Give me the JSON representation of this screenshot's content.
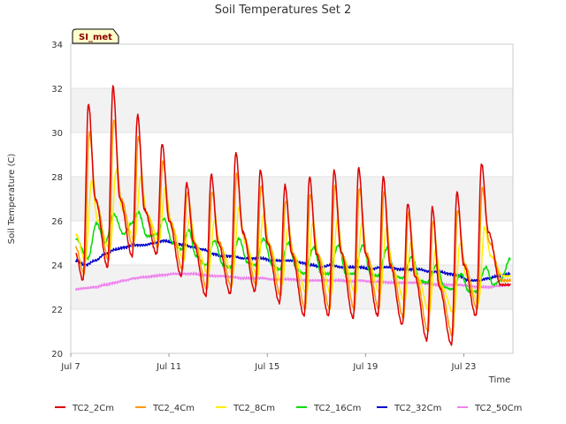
{
  "chart_data": {
    "type": "line",
    "title": "Soil Temperatures Set 2",
    "xlabel": "Time",
    "ylabel": "Soil Temperature (C)",
    "badge": "SI_met",
    "ylim": [
      20,
      34
    ],
    "y_ticks": [
      20,
      22,
      24,
      26,
      28,
      30,
      32,
      34
    ],
    "x_range_days": [
      7,
      25
    ],
    "x_ticks": [
      {
        "day": 7,
        "label": "Jul 7"
      },
      {
        "day": 11,
        "label": "Jul 11"
      },
      {
        "day": 15,
        "label": "Jul 15"
      },
      {
        "day": 19,
        "label": "Jul 19"
      },
      {
        "day": 23,
        "label": "Jul 23"
      }
    ],
    "grid": "horizontal bands",
    "legend_position": "bottom",
    "x_unit": "day of July",
    "series": [
      {
        "name": "TC2_2Cm",
        "color": "#dd0000",
        "x": [
          7.2,
          7.5,
          7.72,
          8.0,
          8.5,
          8.72,
          9.0,
          9.5,
          9.72,
          10.0,
          10.5,
          10.72,
          11.0,
          11.5,
          11.72,
          12.0,
          12.5,
          12.72,
          13.0,
          13.5,
          13.72,
          14.0,
          14.5,
          14.72,
          15.0,
          15.5,
          15.72,
          16.0,
          16.5,
          16.72,
          17.0,
          17.5,
          17.72,
          18.0,
          18.5,
          18.72,
          19.0,
          19.5,
          19.72,
          20.0,
          20.5,
          20.72,
          21.0,
          21.5,
          21.72,
          22.0,
          22.5,
          22.72,
          23.0,
          23.5,
          23.72,
          24.0,
          24.5,
          24.72,
          24.9
        ],
        "y": [
          24.5,
          23.3,
          31.3,
          27.0,
          23.9,
          32.1,
          27.0,
          24.4,
          30.8,
          26.5,
          24.5,
          29.5,
          26.0,
          23.5,
          27.7,
          25.0,
          22.6,
          28.1,
          25.0,
          22.7,
          29.1,
          25.5,
          22.8,
          28.3,
          25.0,
          22.3,
          27.6,
          24.5,
          21.7,
          28.0,
          24.5,
          21.7,
          28.3,
          24.6,
          21.6,
          28.4,
          24.5,
          21.7,
          28.0,
          24.0,
          21.3,
          26.8,
          23.5,
          20.6,
          26.6,
          23.0,
          20.4,
          27.3,
          24.0,
          21.7,
          28.6,
          25.5,
          23.1,
          23.1,
          23.1
        ]
      },
      {
        "name": "TC2_4Cm",
        "color": "#ff9900",
        "x": [
          7.2,
          7.55,
          7.75,
          8.05,
          8.55,
          8.75,
          9.05,
          9.55,
          9.75,
          10.05,
          10.55,
          10.75,
          11.05,
          11.55,
          11.75,
          12.05,
          12.55,
          12.75,
          13.05,
          13.55,
          13.75,
          14.05,
          14.55,
          14.75,
          15.05,
          15.55,
          15.75,
          16.05,
          16.55,
          16.75,
          17.05,
          17.55,
          17.75,
          18.05,
          18.55,
          18.75,
          19.05,
          19.55,
          19.75,
          20.05,
          20.55,
          20.75,
          21.05,
          21.55,
          21.75,
          22.05,
          22.55,
          22.75,
          23.05,
          23.55,
          23.75,
          24.05,
          24.55,
          24.75,
          24.9
        ],
        "y": [
          24.8,
          23.6,
          30.0,
          26.8,
          24.2,
          30.6,
          27.0,
          24.8,
          29.8,
          26.4,
          24.8,
          28.7,
          26.0,
          23.8,
          27.3,
          25.0,
          22.9,
          27.3,
          25.0,
          23.0,
          28.1,
          25.3,
          23.1,
          27.6,
          25.0,
          22.6,
          26.9,
          24.5,
          22.0,
          27.2,
          24.5,
          22.0,
          27.6,
          24.5,
          22.0,
          27.5,
          24.5,
          22.0,
          27.3,
          24.0,
          21.6,
          26.4,
          23.5,
          21.0,
          26.0,
          23.0,
          20.8,
          26.5,
          24.0,
          22.0,
          27.5,
          25.0,
          23.3,
          23.3,
          23.3
        ]
      },
      {
        "name": "TC2_8Cm",
        "color": "#ffee00",
        "x": [
          7.2,
          7.6,
          7.85,
          8.1,
          8.6,
          8.85,
          9.1,
          9.6,
          9.85,
          10.1,
          10.6,
          10.85,
          11.1,
          11.6,
          11.85,
          12.1,
          12.6,
          12.85,
          13.1,
          13.6,
          13.85,
          14.1,
          14.6,
          14.85,
          15.1,
          15.6,
          15.85,
          16.1,
          16.6,
          16.85,
          17.1,
          17.6,
          17.85,
          18.1,
          18.6,
          18.85,
          19.1,
          19.6,
          19.85,
          20.1,
          20.6,
          20.85,
          21.1,
          21.6,
          21.85,
          22.1,
          22.6,
          22.85,
          23.1,
          23.6,
          23.85,
          24.1,
          24.6,
          24.85,
          24.9
        ],
        "y": [
          25.4,
          24.2,
          27.8,
          26.0,
          24.7,
          28.3,
          26.5,
          25.1,
          28.0,
          26.3,
          25.1,
          27.5,
          25.8,
          24.2,
          26.2,
          24.9,
          23.6,
          26.0,
          24.8,
          23.6,
          26.6,
          25.0,
          23.5,
          26.3,
          24.8,
          23.1,
          25.7,
          24.4,
          22.7,
          25.9,
          24.4,
          22.7,
          26.0,
          24.3,
          22.7,
          25.9,
          24.2,
          22.7,
          25.7,
          23.8,
          22.4,
          25.0,
          23.5,
          21.9,
          24.7,
          23.0,
          21.8,
          25.0,
          23.5,
          22.3,
          25.7,
          24.4,
          23.5,
          23.5,
          23.5
        ]
      },
      {
        "name": "TC2_16Cm",
        "color": "#00dd00",
        "x": [
          7.2,
          7.7,
          8.05,
          8.4,
          8.75,
          9.15,
          9.5,
          9.75,
          10.1,
          10.5,
          10.8,
          11.15,
          11.5,
          11.8,
          12.1,
          12.5,
          12.85,
          13.2,
          13.5,
          13.85,
          14.2,
          14.5,
          14.85,
          15.2,
          15.5,
          15.85,
          16.2,
          16.5,
          16.9,
          17.2,
          17.5,
          17.9,
          18.2,
          18.5,
          18.9,
          19.2,
          19.5,
          19.9,
          20.2,
          20.5,
          20.9,
          21.2,
          21.5,
          21.9,
          22.2,
          22.5,
          22.9,
          23.2,
          23.5,
          23.9,
          24.2,
          24.5,
          24.9
        ],
        "y": [
          25.2,
          24.3,
          25.9,
          25.0,
          26.3,
          25.4,
          25.9,
          26.4,
          25.3,
          25.4,
          26.1,
          25.0,
          24.7,
          25.6,
          24.4,
          24.0,
          25.1,
          24.0,
          23.9,
          25.2,
          24.1,
          24.0,
          25.2,
          24.0,
          23.8,
          25.0,
          23.8,
          23.6,
          24.8,
          23.6,
          23.6,
          24.9,
          23.6,
          23.6,
          24.9,
          23.6,
          23.5,
          24.8,
          23.5,
          23.4,
          24.4,
          23.3,
          23.2,
          24.0,
          23.0,
          22.9,
          23.6,
          22.8,
          22.8,
          23.9,
          23.1,
          23.3,
          24.3
        ]
      },
      {
        "name": "TC2_32Cm",
        "color": "#0000cc",
        "x": [
          7.2,
          7.6,
          8.0,
          8.4,
          8.8,
          9.2,
          9.6,
          10.0,
          10.4,
          10.8,
          11.2,
          11.6,
          12.0,
          12.4,
          12.8,
          13.2,
          13.6,
          14.0,
          14.4,
          14.8,
          15.2,
          15.6,
          16.0,
          16.4,
          16.8,
          17.2,
          17.6,
          18.0,
          18.4,
          18.8,
          19.2,
          19.6,
          20.0,
          20.4,
          20.8,
          21.2,
          21.6,
          22.0,
          22.4,
          22.8,
          23.2,
          23.6,
          24.0,
          24.4,
          24.9
        ],
        "y": [
          24.2,
          24.0,
          24.2,
          24.5,
          24.7,
          24.8,
          24.9,
          24.9,
          25.0,
          25.1,
          25.0,
          24.9,
          24.8,
          24.7,
          24.5,
          24.4,
          24.4,
          24.3,
          24.3,
          24.3,
          24.2,
          24.2,
          24.2,
          24.1,
          24.0,
          23.9,
          24.0,
          23.9,
          23.9,
          23.9,
          23.8,
          23.9,
          23.9,
          23.8,
          23.8,
          23.8,
          23.7,
          23.7,
          23.6,
          23.5,
          23.3,
          23.3,
          23.4,
          23.5,
          23.6
        ]
      },
      {
        "name": "TC2_50Cm",
        "color": "#ee82ee",
        "x": [
          7.2,
          7.6,
          8.0,
          8.4,
          8.8,
          9.2,
          9.6,
          10.0,
          10.4,
          10.8,
          11.2,
          11.6,
          12.0,
          12.4,
          12.8,
          13.2,
          13.6,
          14.0,
          14.4,
          14.8,
          15.2,
          15.6,
          16.0,
          16.4,
          16.8,
          17.2,
          17.6,
          18.0,
          18.4,
          18.8,
          19.2,
          19.6,
          20.0,
          20.4,
          20.8,
          21.2,
          21.6,
          22.0,
          22.4,
          22.8,
          23.2,
          23.6,
          24.0,
          24.4,
          24.9
        ],
        "y": [
          22.9,
          22.95,
          23.0,
          23.1,
          23.2,
          23.3,
          23.4,
          23.45,
          23.5,
          23.55,
          23.6,
          23.6,
          23.6,
          23.55,
          23.5,
          23.5,
          23.45,
          23.4,
          23.4,
          23.4,
          23.35,
          23.35,
          23.35,
          23.3,
          23.3,
          23.3,
          23.3,
          23.3,
          23.25,
          23.3,
          23.25,
          23.25,
          23.2,
          23.2,
          23.2,
          23.2,
          23.15,
          23.1,
          23.1,
          23.1,
          23.05,
          23.0,
          23.0,
          23.05,
          23.1
        ]
      }
    ]
  }
}
